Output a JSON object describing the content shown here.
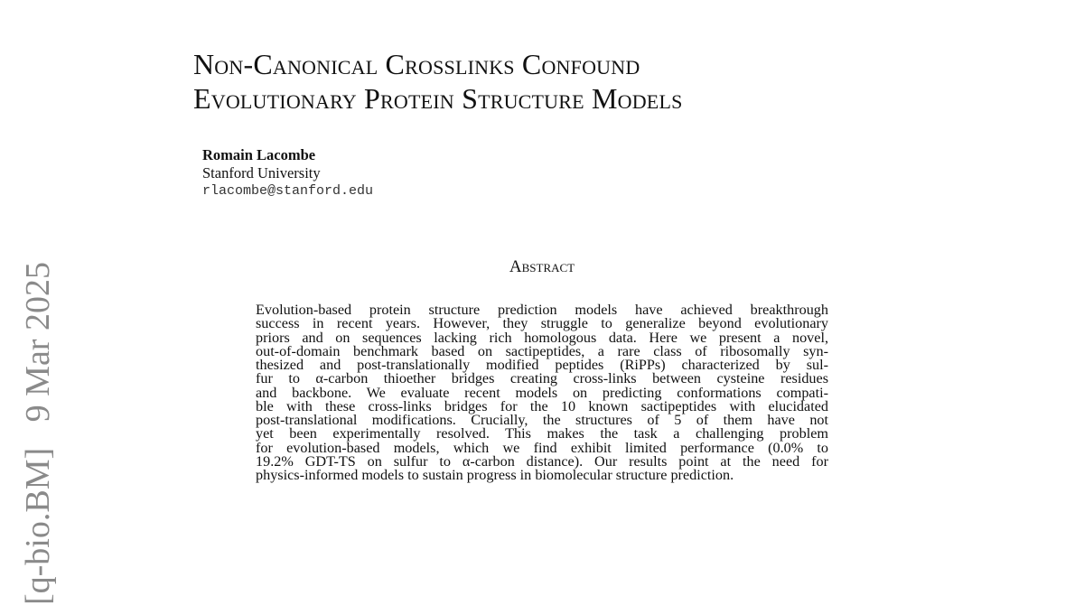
{
  "paper": {
    "title_lines": [
      "Non-Canonical Crosslinks Confound",
      "Evolutionary Protein Structure Models"
    ],
    "author": {
      "name": "Romain Lacombe",
      "affiliation": "Stanford University",
      "email": "rlacombe@stanford.edu"
    },
    "abstract_heading": "Abstract",
    "abstract_lines": [
      "Evolution-based protein structure prediction models have achieved breakthrough",
      "success in recent years. However, they struggle to generalize beyond evolutionary",
      "priors and on sequences lacking rich homologous data. Here we present a novel,",
      "out-of-domain benchmark based on sactipeptides, a rare class of ribosomally syn-",
      "thesized and post-translationally modified peptides (RiPPs) characterized by sul-",
      "fur to α-carbon thioether bridges creating cross-links between cysteine residues",
      "and backbone. We evaluate recent models on predicting conformations compati-",
      "ble with these cross-links bridges for the 10 known sactipeptides with elucidated",
      "post-translational modifications. Crucially, the structures of 5 of them have not",
      "yet been experimentally resolved. This makes the task a challenging problem",
      "for evolution-based models, which we find exhibit limited performance (0.0% to",
      "19.2% GDT-TS on sulfur to α-carbon distance). Our results point at the need for",
      "physics-informed models to sustain progress in biomolecular structure prediction."
    ],
    "arxiv_sidebar": "[q-bio.BM]   9 Mar 2025"
  }
}
